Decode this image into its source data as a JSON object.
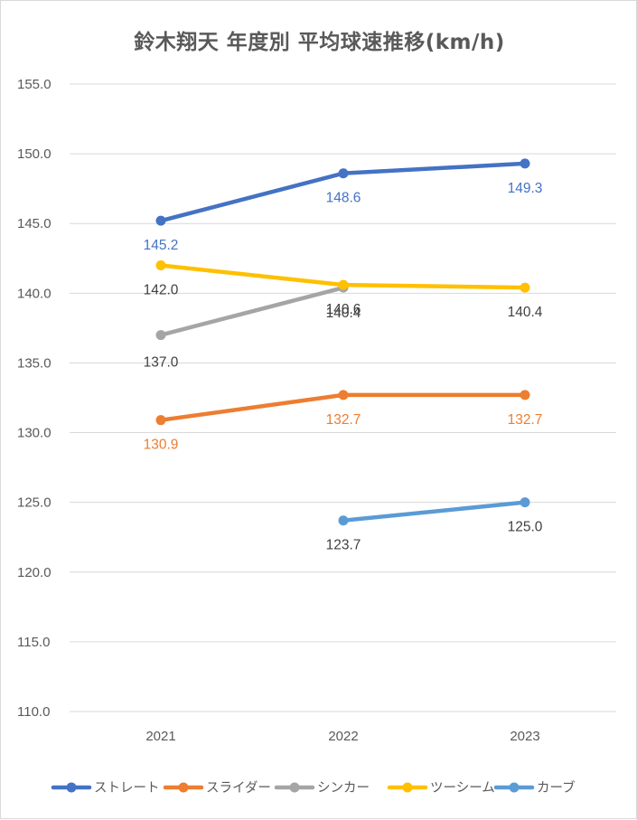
{
  "chart_data": {
    "type": "line",
    "title": "鈴木翔天 年度別 平均球速推移(km/h)",
    "categories": [
      "2021",
      "2022",
      "2023"
    ],
    "ylim": [
      110,
      155
    ],
    "y_ticks": [
      "110.0",
      "115.0",
      "120.0",
      "125.0",
      "130.0",
      "135.0",
      "140.0",
      "145.0",
      "150.0",
      "155.0"
    ],
    "grid": true,
    "legend_position": "bottom",
    "series": [
      {
        "name": "ストレート",
        "color": "#4472c4",
        "values": [
          145.2,
          148.6,
          149.3
        ],
        "labels": [
          "145.2",
          "148.6",
          "149.3"
        ],
        "label_color": "#4472c4"
      },
      {
        "name": "スライダー",
        "color": "#ed7d31",
        "values": [
          130.9,
          132.7,
          132.7
        ],
        "labels": [
          "130.9",
          "132.7",
          "132.7"
        ],
        "label_color": "#ed7d31"
      },
      {
        "name": "シンカー",
        "color": "#a5a5a5",
        "values": [
          137.0,
          140.4,
          null
        ],
        "labels": [
          "137.0",
          "140.4",
          null
        ],
        "label_color": "#404040"
      },
      {
        "name": "ツーシーム",
        "color": "#ffc000",
        "values": [
          142.0,
          140.6,
          140.4
        ],
        "labels": [
          "142.0",
          "140.6",
          "140.4"
        ],
        "label_color": "#404040"
      },
      {
        "name": "カーブ",
        "color": "#5b9bd5",
        "values": [
          null,
          123.7,
          125.0
        ],
        "labels": [
          null,
          "123.7",
          "125.0"
        ],
        "label_color": "#404040"
      }
    ]
  }
}
